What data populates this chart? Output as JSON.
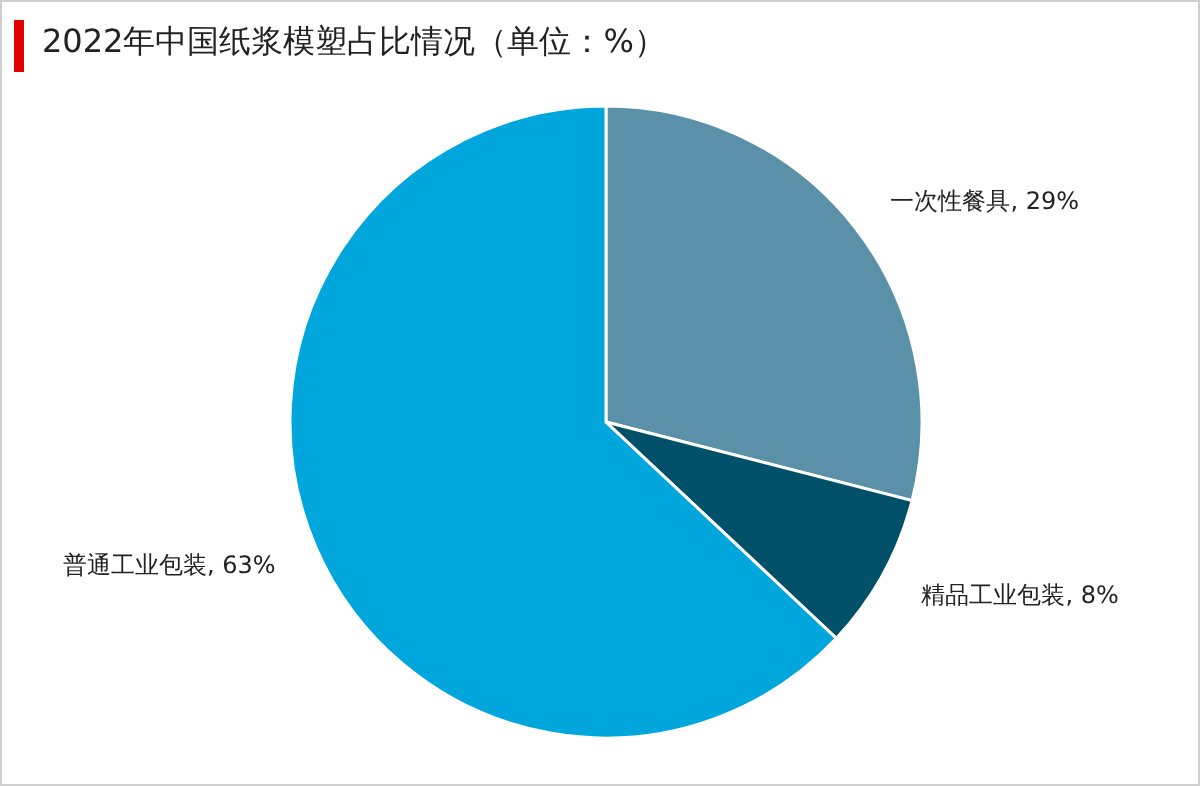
{
  "chart_data": {
    "type": "pie",
    "title": "2022年中国纸浆模塑占比情况（单位：%）",
    "categories": [
      "一次性餐具",
      "精品工业包装",
      "普通工业包装"
    ],
    "values": [
      29,
      8,
      63
    ],
    "value_labels": [
      "29%",
      "8%",
      "63%"
    ],
    "colors": [
      "#5b91a8",
      "#00506a",
      "#00a6dc"
    ]
  }
}
